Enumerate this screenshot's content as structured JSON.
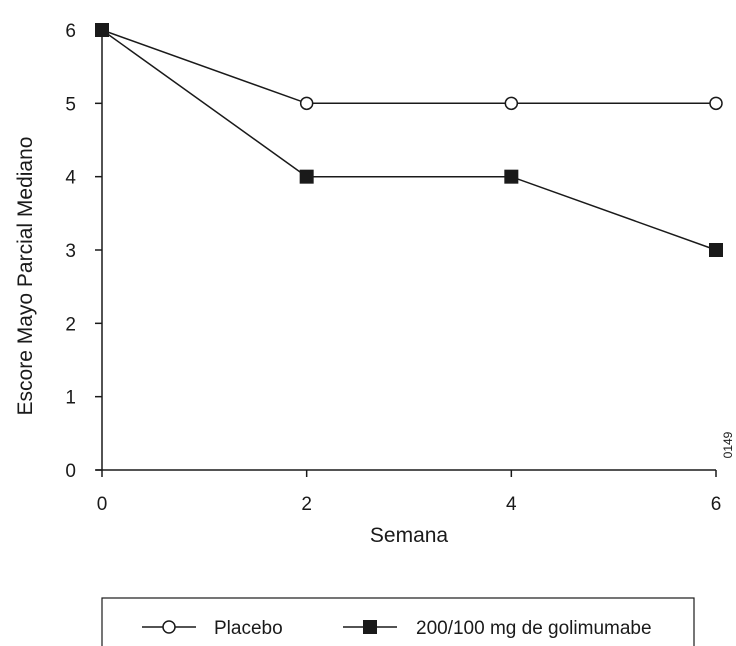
{
  "chart_data": {
    "type": "line",
    "title": "",
    "xlabel": "Semana",
    "ylabel": "Escore Mayo Parcial Mediano",
    "x": [
      0,
      2,
      4,
      6
    ],
    "xticks": [
      "0",
      "2",
      "4",
      "6"
    ],
    "yticks": [
      "0",
      "1",
      "2",
      "3",
      "4",
      "5",
      "6"
    ],
    "xlim": [
      0,
      6
    ],
    "ylim": [
      0,
      6
    ],
    "grid": false,
    "legend_position": "bottom",
    "series": [
      {
        "name": "Placebo",
        "marker": "open-circle",
        "values": [
          6,
          5,
          5,
          5
        ]
      },
      {
        "name": "200/100 mg de golimumabe",
        "marker": "filled-square",
        "values": [
          6,
          4,
          4,
          3
        ]
      }
    ],
    "annotation": "0149"
  },
  "colors": {
    "line": "#1a1a1a",
    "background": "#ffffff"
  }
}
